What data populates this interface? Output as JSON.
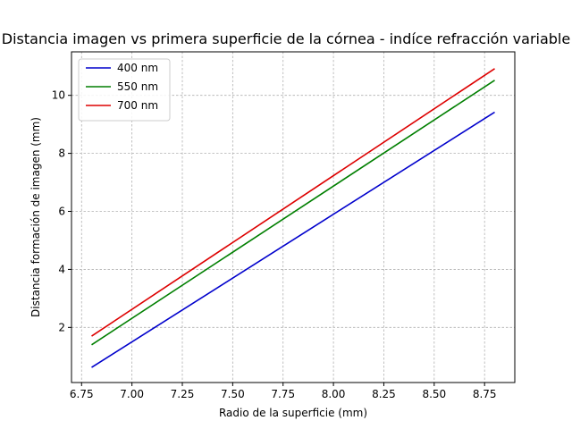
{
  "chart_data": {
    "type": "line",
    "title": "Distancia imagen vs primera superficie de la córnea - indíce refracción variable",
    "xlabel": "Radio de la superficie (mm)",
    "ylabel": "Distancia formación de imagen (mm)",
    "xlim": [
      6.7,
      8.9
    ],
    "ylim": [
      0.1,
      11.5
    ],
    "xticks": [
      6.75,
      7.0,
      7.25,
      7.5,
      7.75,
      8.0,
      8.25,
      8.5,
      8.75
    ],
    "xtick_labels": [
      "6.75",
      "7.00",
      "7.25",
      "7.50",
      "7.75",
      "8.00",
      "8.25",
      "8.50",
      "8.75"
    ],
    "yticks": [
      2,
      4,
      6,
      8,
      10
    ],
    "ytick_labels": [
      "2",
      "4",
      "6",
      "8",
      "10"
    ],
    "grid": true,
    "legend_position": "top-left",
    "series": [
      {
        "name": "400 nm",
        "color": "#0000cc",
        "x": [
          6.8,
          8.8
        ],
        "y": [
          0.62,
          9.42
        ]
      },
      {
        "name": "550 nm",
        "color": "#007f00",
        "x": [
          6.8,
          8.8
        ],
        "y": [
          1.4,
          10.52
        ]
      },
      {
        "name": "700 nm",
        "color": "#dd0000",
        "x": [
          6.8,
          8.8
        ],
        "y": [
          1.7,
          10.92
        ]
      }
    ]
  }
}
